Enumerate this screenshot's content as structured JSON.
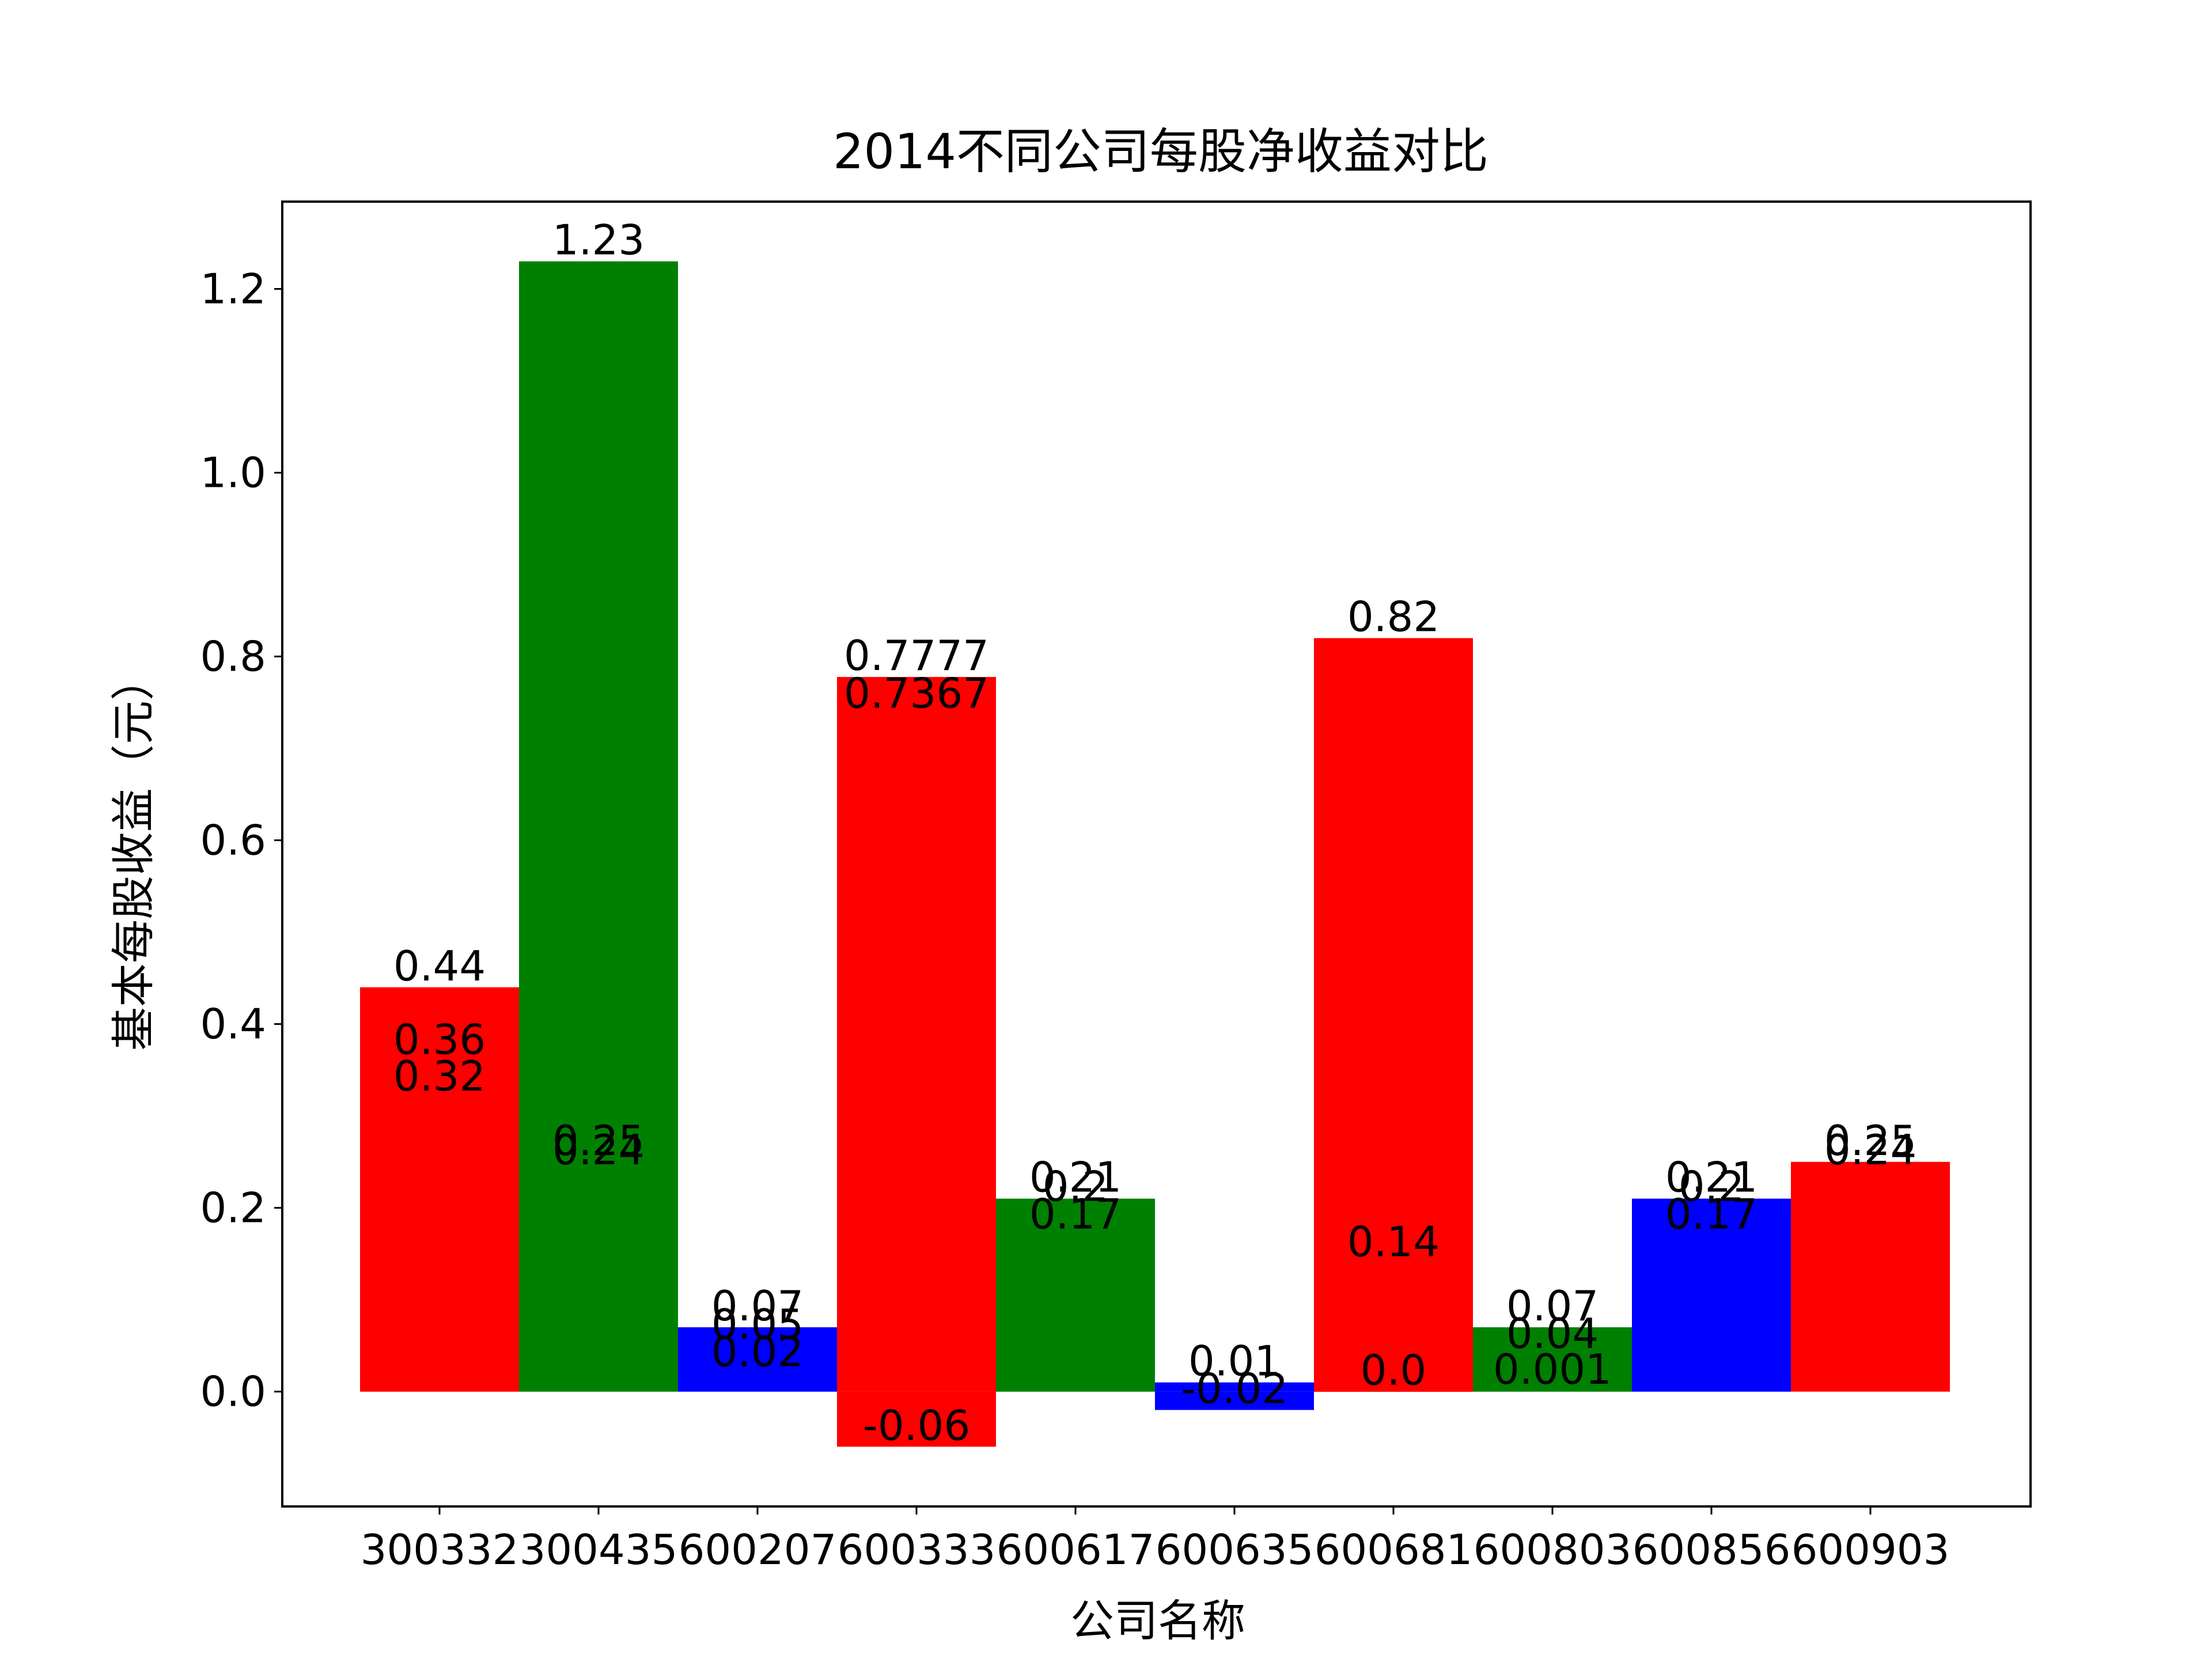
{
  "chart_data": {
    "type": "bar",
    "title": "2014不同公司每股净收益对比",
    "xlabel": "公司名称",
    "ylabel": "基本每股收益（元）",
    "ylim": [
      -0.125,
      1.295
    ],
    "yticks": [
      0.0,
      0.2,
      0.4,
      0.6,
      0.8,
      1.0,
      1.2
    ],
    "ytick_labels": [
      "0.0",
      "0.2",
      "0.4",
      "0.6",
      "0.8",
      "1.0",
      "1.2"
    ],
    "categories": [
      "300332",
      "300435",
      "600207",
      "600333",
      "600617",
      "600635",
      "600681",
      "600803",
      "600856",
      "600903"
    ],
    "colors": [
      "#ff0000",
      "#008000",
      "#0000ff",
      "#ff0000",
      "#008000",
      "#0000ff",
      "#ff0000",
      "#008000",
      "#0000ff",
      "#ff0000"
    ],
    "series": [
      {
        "values": [
          0.44,
          0.25,
          0.07,
          0.7777,
          0.21,
          0.01,
          0.82,
          0.07,
          0.21,
          0.25
        ]
      },
      {
        "values": [
          0.36,
          0.24,
          0.05,
          0.7367,
          0.2,
          -0.02,
          0.14,
          0.04,
          0.2,
          0.24
        ]
      },
      {
        "values": [
          0.32,
          1.23,
          0.02,
          -0.06,
          0.17,
          null,
          0.0,
          0.001,
          0.17,
          null
        ]
      }
    ],
    "data_labels": [
      [
        "0.44",
        "0.36",
        "0.32"
      ],
      [
        "0.25",
        "0.24",
        "1.23"
      ],
      [
        "0.07",
        "0.05",
        "0.02"
      ],
      [
        "0.7777",
        "0.7367",
        "-0.06"
      ],
      [
        "0.21",
        "0.2",
        "0.17"
      ],
      [
        "0.01",
        "-0.02"
      ],
      [
        "0.82",
        "0.14",
        "0.0"
      ],
      [
        "0.07",
        "0.04",
        "0.001"
      ],
      [
        "0.21",
        "0.2",
        "0.17"
      ],
      [
        "0.25",
        "0.24"
      ]
    ],
    "legend": "none",
    "grid": false
  }
}
